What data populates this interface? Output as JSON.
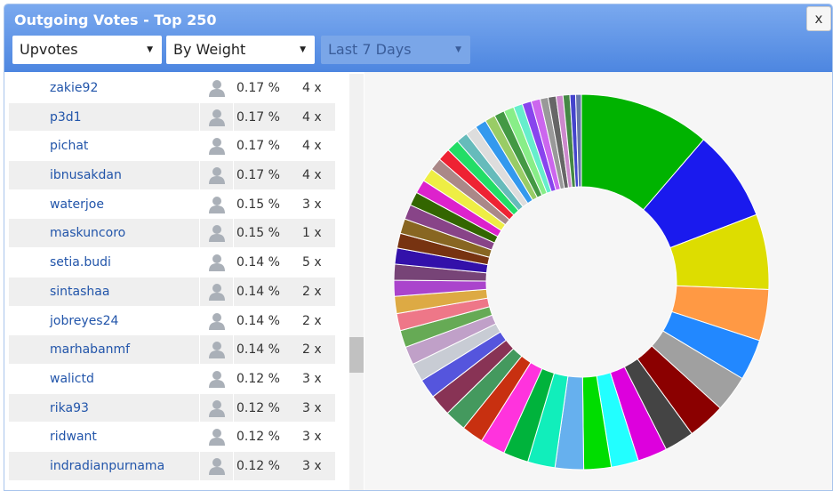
{
  "header": {
    "title": "Outgoing Votes - Top 250",
    "close": "x",
    "filters": [
      "Upvotes",
      "By Weight",
      "Last 7 Days"
    ]
  },
  "table": {
    "rows": [
      [
        "zakie92",
        "0.17 %",
        "4 x"
      ],
      [
        "p3d1",
        "0.17 %",
        "4 x"
      ],
      [
        "pichat",
        "0.17 %",
        "4 x"
      ],
      [
        "ibnusakdan",
        "0.17 %",
        "4 x"
      ],
      [
        "waterjoe",
        "0.15 %",
        "3 x"
      ],
      [
        "maskuncoro",
        "0.15 %",
        "1 x"
      ],
      [
        "setia.budi",
        "0.14 %",
        "5 x"
      ],
      [
        "sintashaa",
        "0.14 %",
        "2 x"
      ],
      [
        "jobreyes24",
        "0.14 %",
        "2 x"
      ],
      [
        "marhabanmf",
        "0.14 %",
        "2 x"
      ],
      [
        "walictd",
        "0.12 %",
        "3 x"
      ],
      [
        "rika93",
        "0.12 %",
        "3 x"
      ],
      [
        "ridwant",
        "0.12 %",
        "3 x"
      ],
      [
        "indradianpurnama",
        "0.12 %",
        "3 x"
      ]
    ]
  },
  "donut": {
    "type": "pie",
    "values": [
      11.5,
      8,
      6.6,
      4.5,
      3.6,
      3.2,
      3.3,
      2.6,
      2.6,
      2.4,
      2.4,
      2.5,
      2.4,
      2.2,
      2.2,
      1.9,
      1.9,
      1.9,
      1.7,
      1.6,
      1.6,
      1.5,
      1.5,
      1.5,
      1.4,
      1.4,
      1.4,
      1.3,
      1.3,
      1.3,
      1.2,
      1.2,
      1.2,
      1.1,
      1.1,
      1.1,
      1.0,
      1.0,
      1.0,
      0.9,
      0.9,
      0.9,
      0.8,
      0.8,
      0.8,
      0.7,
      0.7,
      0.6,
      0.6,
      0.5,
      0.5
    ],
    "colors": [
      "#00b300",
      "#1a1aee",
      "#dddd00",
      "#ff9944",
      "#2288ff",
      "#a0a0a0",
      "#8b0000",
      "#444444",
      "#dd00dd",
      "#22ffff",
      "#00dd00",
      "#66b0ee",
      "#11eebb",
      "#00b33c",
      "#ff33dd",
      "#c83010",
      "#44995e",
      "#883355",
      "#5555dd",
      "#c8ccd4",
      "#c0a0c8",
      "#66aa55",
      "#ee7788",
      "#ddaa44",
      "#aa44cc",
      "#774477",
      "#3311aa",
      "#773311",
      "#886622",
      "#884488",
      "#336600",
      "#dd22cc",
      "#eeee44",
      "#aa8888",
      "#ee2233",
      "#22dd66",
      "#66bbbb",
      "#dddddd",
      "#3399ee",
      "#99cc66",
      "#449944",
      "#88ee88",
      "#66eecc",
      "#8844ee",
      "#cc66ee",
      "#999999",
      "#666666",
      "#cc88cc",
      "#448844",
      "#4444cc",
      "#6677aa"
    ]
  }
}
